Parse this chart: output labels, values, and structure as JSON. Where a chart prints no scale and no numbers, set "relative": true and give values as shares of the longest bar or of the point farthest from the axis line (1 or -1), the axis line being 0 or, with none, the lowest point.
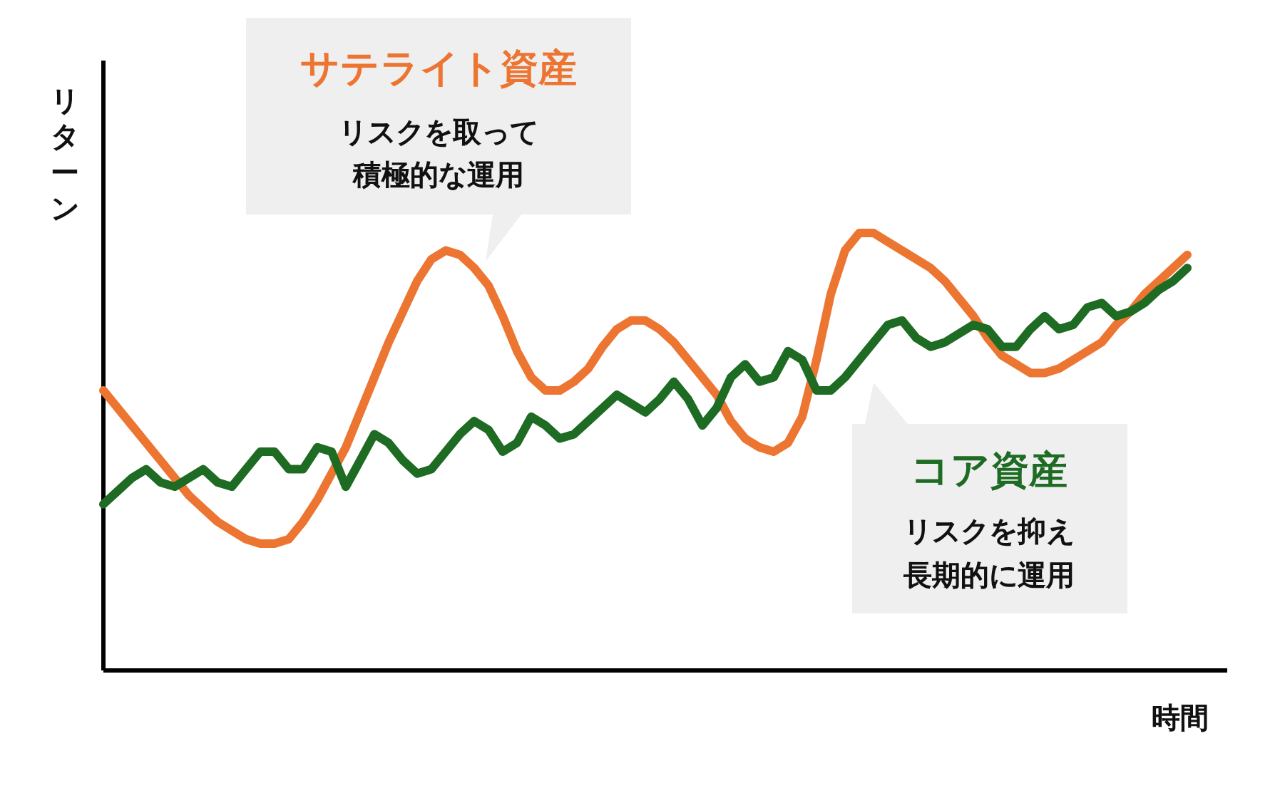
{
  "chart_data": {
    "type": "line",
    "relative": true,
    "xlabel": "時間",
    "ylabel": "リターン",
    "categories": [
      null,
      null,
      null,
      null,
      null,
      null,
      null,
      null,
      null,
      null,
      null,
      null,
      null,
      null,
      null,
      null,
      null,
      null,
      null,
      null,
      null,
      null,
      null,
      null,
      null,
      null,
      null,
      null,
      null,
      null,
      null,
      null,
      null,
      null,
      null,
      null,
      null,
      null,
      null,
      null,
      null,
      null,
      null,
      null,
      null,
      null,
      null,
      null,
      null,
      null,
      null,
      null,
      null,
      null,
      null,
      null,
      null,
      null,
      null,
      null,
      null,
      null,
      null,
      null,
      null,
      null,
      null,
      null,
      null,
      null,
      null,
      null,
      null,
      null,
      null,
      null,
      null
    ],
    "series": [
      {
        "name": "サテライト資産",
        "color": "#ed7532",
        "values": [
          0.64,
          0.6,
          0.56,
          0.52,
          0.48,
          0.44,
          0.4,
          0.37,
          0.34,
          0.32,
          0.3,
          0.29,
          0.29,
          0.3,
          0.34,
          0.39,
          0.45,
          0.51,
          0.59,
          0.67,
          0.75,
          0.82,
          0.89,
          0.94,
          0.96,
          0.95,
          0.92,
          0.88,
          0.81,
          0.73,
          0.67,
          0.64,
          0.64,
          0.66,
          0.69,
          0.74,
          0.78,
          0.8,
          0.8,
          0.78,
          0.75,
          0.71,
          0.67,
          0.63,
          0.57,
          0.53,
          0.51,
          0.5,
          0.52,
          0.58,
          0.71,
          0.86,
          0.96,
          1.0,
          1.0,
          0.98,
          0.96,
          0.94,
          0.92,
          0.89,
          0.85,
          0.81,
          0.76,
          0.72,
          0.7,
          0.68,
          0.68,
          0.69,
          0.71,
          0.73,
          0.75,
          0.79,
          0.82,
          0.86,
          0.89,
          0.92,
          0.95
        ]
      },
      {
        "name": "コア資産",
        "color": "#1e6b23",
        "values": [
          0.38,
          0.41,
          0.44,
          0.46,
          0.43,
          0.42,
          0.44,
          0.46,
          0.43,
          0.42,
          0.46,
          0.5,
          0.5,
          0.46,
          0.46,
          0.51,
          0.5,
          0.42,
          0.48,
          0.54,
          0.52,
          0.48,
          0.45,
          0.46,
          0.5,
          0.54,
          0.57,
          0.55,
          0.5,
          0.52,
          0.58,
          0.56,
          0.53,
          0.54,
          0.57,
          0.6,
          0.63,
          0.61,
          0.59,
          0.62,
          0.66,
          0.62,
          0.56,
          0.6,
          0.67,
          0.7,
          0.66,
          0.67,
          0.73,
          0.71,
          0.64,
          0.64,
          0.67,
          0.71,
          0.75,
          0.79,
          0.8,
          0.76,
          0.74,
          0.75,
          0.77,
          0.79,
          0.78,
          0.74,
          0.74,
          0.78,
          0.81,
          0.78,
          0.79,
          0.83,
          0.84,
          0.81,
          0.82,
          0.84,
          0.87,
          0.89,
          0.92
        ]
      }
    ],
    "annotations": [
      "リスクを取って",
      "積極的な運用",
      "リスクを抑え",
      "長期的に運用"
    ]
  }
}
